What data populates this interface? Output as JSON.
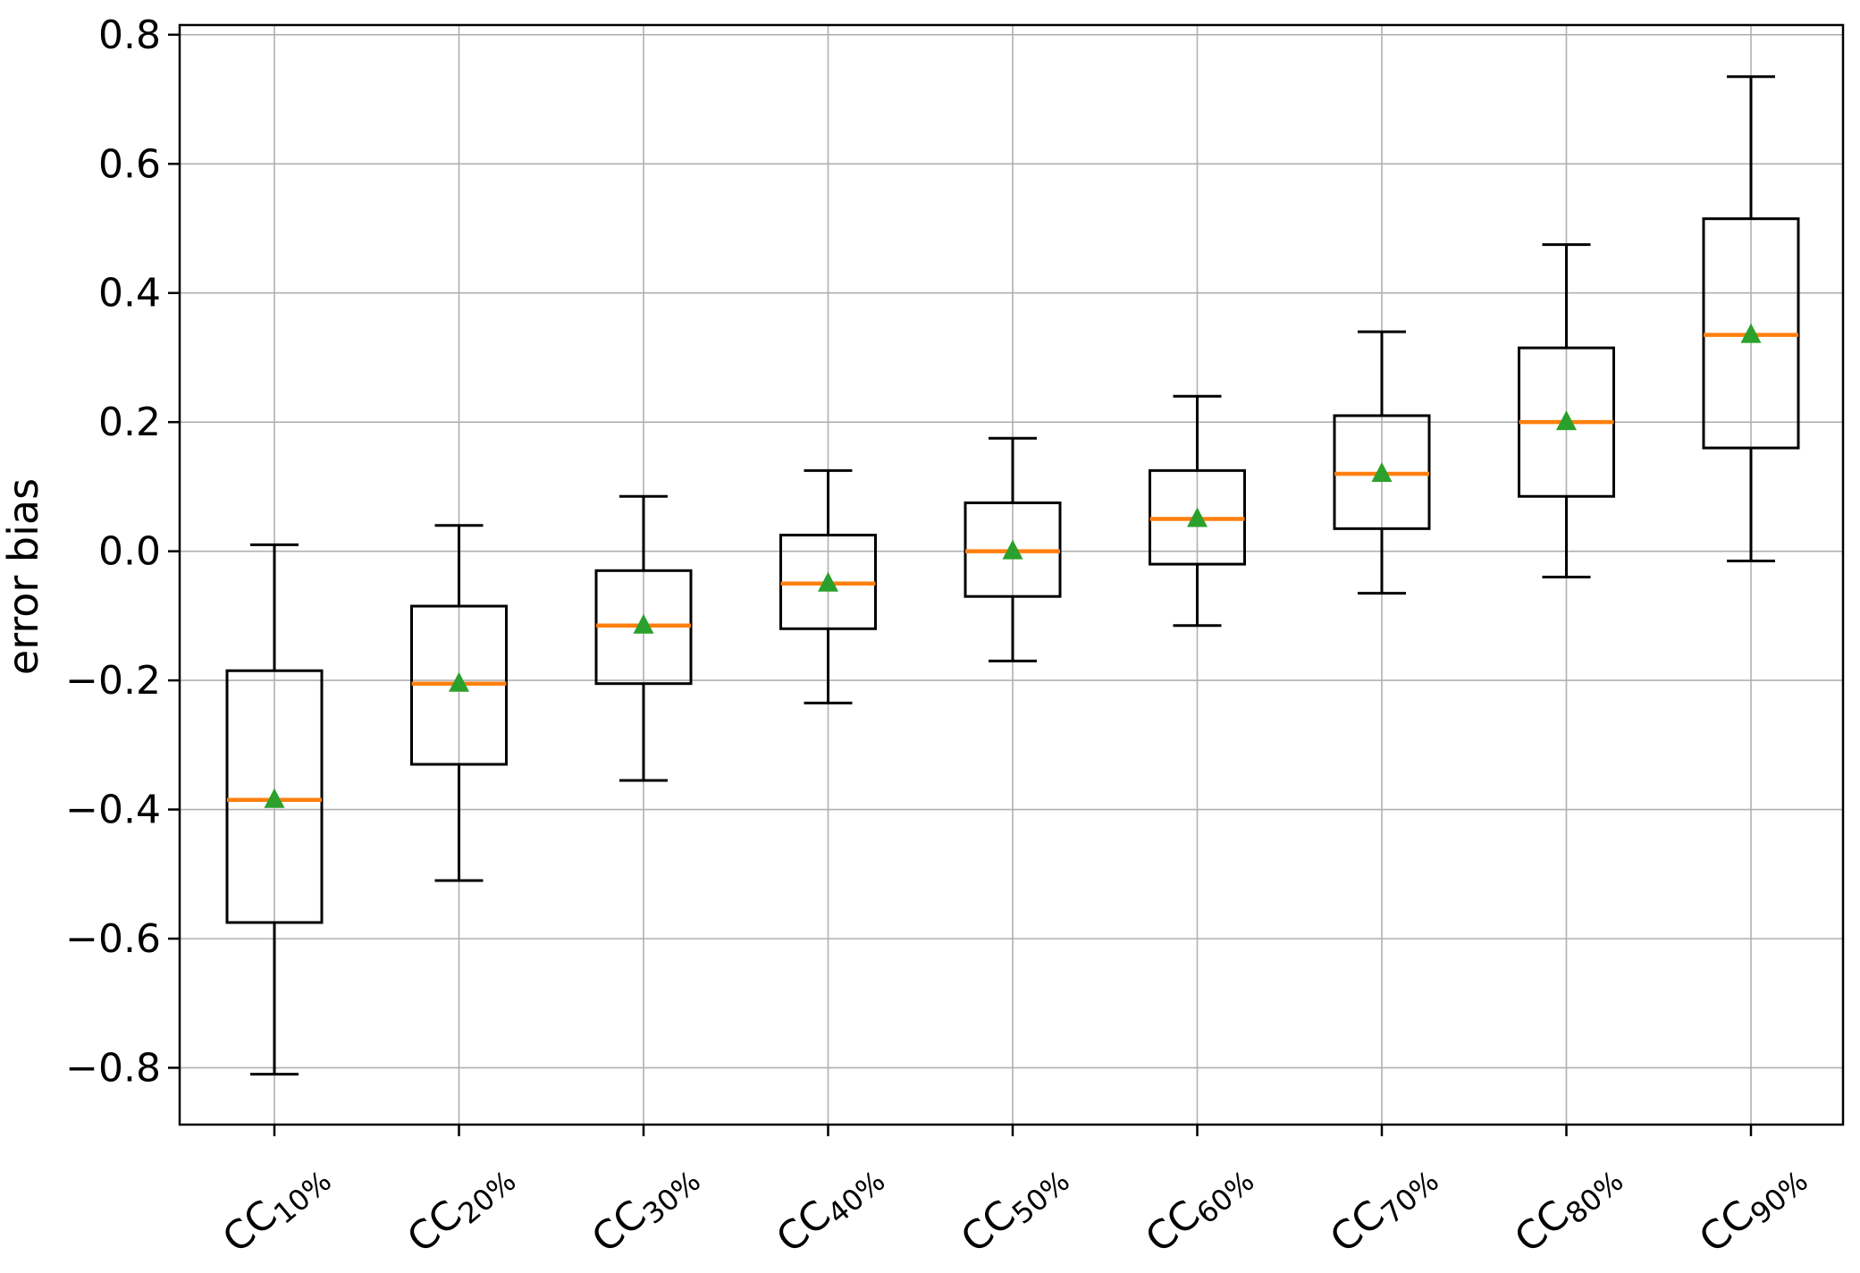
{
  "figure": {
    "title": "",
    "ylabel": "error bias",
    "colors": {
      "background": "#ffffff",
      "spine": "#000000",
      "grid": "#b0b0b0",
      "box_edge": "#000000",
      "median": "#ff7f0e",
      "mean_marker": "#2ca02c",
      "tick_text": "#000000"
    }
  },
  "chart_data": {
    "type": "boxplot",
    "title": "",
    "xlabel": "",
    "ylabel": "error bias",
    "ylim": [
      -0.888,
      0.815
    ],
    "yticks": [
      0.8,
      0.6,
      0.4,
      0.2,
      0.0,
      -0.2,
      -0.4,
      -0.6,
      -0.8
    ],
    "grid": true,
    "legend": false,
    "categories": [
      "CC10%",
      "CC20%",
      "CC30%",
      "CC40%",
      "CC50%",
      "CC60%",
      "CC70%",
      "CC80%",
      "CC90%"
    ],
    "category_labels": [
      {
        "base": "CC",
        "sub": "10%"
      },
      {
        "base": "CC",
        "sub": "20%"
      },
      {
        "base": "CC",
        "sub": "30%"
      },
      {
        "base": "CC",
        "sub": "40%"
      },
      {
        "base": "CC",
        "sub": "50%"
      },
      {
        "base": "CC",
        "sub": "60%"
      },
      {
        "base": "CC",
        "sub": "70%"
      },
      {
        "base": "CC",
        "sub": "80%"
      },
      {
        "base": "CC",
        "sub": "90%"
      }
    ],
    "boxes": [
      {
        "label": "CC10%",
        "whisker_low": -0.81,
        "q1": -0.575,
        "median": -0.385,
        "q3": -0.185,
        "whisker_high": 0.01,
        "mean": -0.385
      },
      {
        "label": "CC20%",
        "whisker_low": -0.51,
        "q1": -0.33,
        "median": -0.205,
        "q3": -0.085,
        "whisker_high": 0.04,
        "mean": -0.205
      },
      {
        "label": "CC30%",
        "whisker_low": -0.355,
        "q1": -0.205,
        "median": -0.115,
        "q3": -0.03,
        "whisker_high": 0.085,
        "mean": -0.115
      },
      {
        "label": "CC40%",
        "whisker_low": -0.235,
        "q1": -0.12,
        "median": -0.05,
        "q3": 0.025,
        "whisker_high": 0.125,
        "mean": -0.05
      },
      {
        "label": "CC50%",
        "whisker_low": -0.17,
        "q1": -0.07,
        "median": 0.0,
        "q3": 0.075,
        "whisker_high": 0.175,
        "mean": 0.0
      },
      {
        "label": "CC60%",
        "whisker_low": -0.115,
        "q1": -0.02,
        "median": 0.05,
        "q3": 0.125,
        "whisker_high": 0.24,
        "mean": 0.05
      },
      {
        "label": "CC70%",
        "whisker_low": -0.065,
        "q1": 0.035,
        "median": 0.12,
        "q3": 0.21,
        "whisker_high": 0.34,
        "mean": 0.12
      },
      {
        "label": "CC80%",
        "whisker_low": -0.04,
        "q1": 0.085,
        "median": 0.2,
        "q3": 0.315,
        "whisker_high": 0.475,
        "mean": 0.2
      },
      {
        "label": "CC90%",
        "whisker_low": -0.015,
        "q1": 0.16,
        "median": 0.335,
        "q3": 0.515,
        "whisker_high": 0.735,
        "mean": 0.335
      }
    ]
  }
}
